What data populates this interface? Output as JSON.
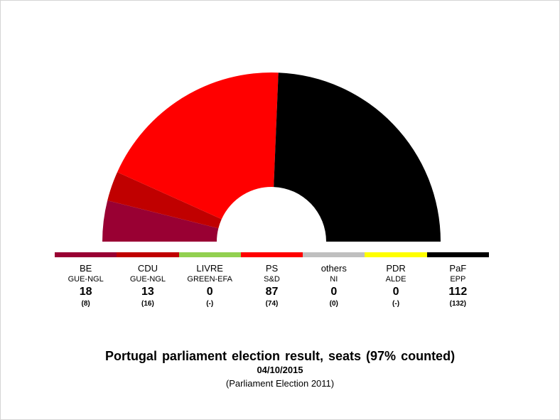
{
  "colors": {
    "BE": "#990033",
    "CDU": "#c00000",
    "LIVRE": "#92d050",
    "PS": "#ff0000",
    "others": "#bfbfbf",
    "PDR": "#ffff00",
    "PaF": "#000000"
  },
  "chart_data": {
    "type": "pie",
    "subtype": "parliament-half-donut",
    "title": "Portugal parliament election result, seats (97% counted)",
    "date": "04/10/2015",
    "subtitle": "(Parliament Election 2011)",
    "parties": [
      {
        "name": "BE",
        "group": "GUE-NGL",
        "seats": 18,
        "seats_label": "18",
        "previous": "(8)"
      },
      {
        "name": "CDU",
        "group": "GUE-NGL",
        "seats": 13,
        "seats_label": "13",
        "previous": "(16)"
      },
      {
        "name": "LIVRE",
        "group": "GREEN-EFA",
        "seats": 0,
        "seats_label": "0",
        "previous": "(-)"
      },
      {
        "name": "PS",
        "group": "S&D",
        "seats": 87,
        "seats_label": "87",
        "previous": "(74)"
      },
      {
        "name": "others",
        "group": "NI",
        "seats": 0,
        "seats_label": "0",
        "previous": "(0)"
      },
      {
        "name": "PDR",
        "group": "ALDE",
        "seats": 0,
        "seats_label": "0",
        "previous": "(-)"
      },
      {
        "name": "PaF",
        "group": "EPP",
        "seats": 112,
        "seats_label": "112",
        "previous": "(132)"
      }
    ]
  }
}
